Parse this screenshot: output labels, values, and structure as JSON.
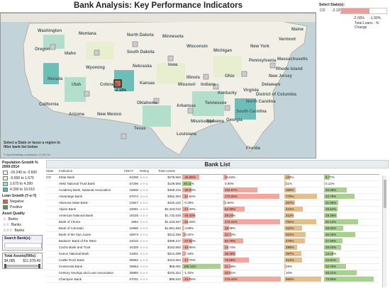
{
  "title": "Bank Analysis: Key Performance Indicators",
  "map": {
    "caption_line1": "Select a State or lasso a region to",
    "caption_line2": "filter bank list below",
    "credit": "© OpenStreetMap contributors, CC-BY-SA",
    "selected_value": "-2.12%",
    "labels": [
      {
        "name": "Washington"
      },
      {
        "name": "Montana"
      },
      {
        "name": "North Dakota"
      },
      {
        "name": "Minnesota"
      },
      {
        "name": "Oregon"
      },
      {
        "name": "Idaho"
      },
      {
        "name": "South Dakota"
      },
      {
        "name": "Wisconsin"
      },
      {
        "name": "Michigan"
      },
      {
        "name": "Wyoming"
      },
      {
        "name": "Nebraska"
      },
      {
        "name": "Iowa"
      },
      {
        "name": "Nevada"
      },
      {
        "name": "Utah"
      },
      {
        "name": "Colorado"
      },
      {
        "name": "Kansas"
      },
      {
        "name": "Missouri"
      },
      {
        "name": "California"
      },
      {
        "name": "Arizona"
      },
      {
        "name": "New Mexico"
      },
      {
        "name": "Oklahoma"
      },
      {
        "name": "Arkansas"
      },
      {
        "name": "Texas"
      },
      {
        "name": "Louisiana"
      },
      {
        "name": "Mississippi"
      },
      {
        "name": "Alabama"
      },
      {
        "name": "Georgia"
      },
      {
        "name": "Florida"
      },
      {
        "name": "Tennessee"
      },
      {
        "name": "Kentucky"
      },
      {
        "name": "Indiana"
      },
      {
        "name": "Illinois"
      },
      {
        "name": "Ohio"
      },
      {
        "name": "Pennsylvania"
      },
      {
        "name": "New York"
      },
      {
        "name": "Vermont"
      },
      {
        "name": "Maine"
      },
      {
        "name": "Massachusetts"
      },
      {
        "name": "Rhode Island"
      },
      {
        "name": "New Jersey"
      },
      {
        "name": "Delaware"
      },
      {
        "name": "Virginia"
      },
      {
        "name": "North Carolina"
      },
      {
        "name": "South Carolina"
      },
      {
        "name": "District of Columbia"
      }
    ]
  },
  "state_filter": {
    "title": "Select State(s):",
    "state": "CO",
    "value": "-2.12%",
    "tick_left": "-2.00%",
    "tick_right": "-1.00%",
    "axis_label": "Total Loans - % Change"
  },
  "legend": {
    "pop_title_1": "Population Growth %",
    "pop_title_2": "2009-2014",
    "pop_items": [
      {
        "label": "-26.240 to -0.600",
        "color": "#f3f3f3"
      },
      {
        "label": "-0.600 to 1.670",
        "color": "#e7f0ce"
      },
      {
        "label": "1.670 to 4.390",
        "color": "#a9dcc8"
      },
      {
        "label": "4.390 to 10.010",
        "color": "#55b7b2"
      }
    ],
    "loan_title": "Loan Growth (Y-o-Y)",
    "loan_items": [
      {
        "label": "Negative",
        "color": "#e0604e"
      },
      {
        "label": "Positive",
        "color": "#4e9a4e"
      }
    ],
    "asset_title": "Asset Quality",
    "asset_items": [
      {
        "label": "Banks",
        "glyph": "☆"
      },
      {
        "label": "Banks",
        "glyph": "☆☆"
      },
      {
        "label": "Banks",
        "glyph": "☆☆☆"
      }
    ],
    "search_label": "Search Bank(s):",
    "search_value": "",
    "assets_label": "Total Assets(000s):",
    "assets_min": "$4,085",
    "assets_max": "$11,978,49"
  },
  "bank_list": {
    "title": "Bank List",
    "columns": [
      "State",
      "Institution",
      "FDIC#",
      "Rating",
      "Total Assets"
    ],
    "rows": [
      {
        "state": "CO",
        "name": "5Star Bank",
        "fdic": "91005",
        "rating": "☆☆☆",
        "assets": "$179,592",
        "c1": "-46.98%",
        "c2": "10.63%",
        "c3": "133%",
        "c4": "8.77%"
      },
      {
        "state": "",
        "name": "AMG National Trust Bank",
        "fdic": "67296",
        "rating": "☆☆☆",
        "assets": "$139,650",
        "c1": "26.11%",
        "c2": "0.00%",
        "c3": "31%",
        "c4": "0.12%"
      },
      {
        "state": "",
        "name": "Academy Bank, National Association",
        "fdic": "19600",
        "rating": "☆☆☆",
        "assets": "$469,216",
        "c1": "-25.00%",
        "c2": "102.67%",
        "c3": "266%",
        "c4": "33.38%"
      },
      {
        "state": "",
        "name": "Advantage Bank",
        "fdic": "57072",
        "rating": "☆☆☆",
        "assets": "$362,304",
        "c1": "-14.84%",
        "c2": "170.26%",
        "c3": "770%",
        "c4": "44.79%"
      },
      {
        "state": "",
        "name": "Alamosa State Bank",
        "fdic": "13947",
        "rating": "☆☆☆",
        "assets": "$160,162",
        "c1": "-0.39%",
        "c2": "4.50%",
        "c3": "257%",
        "c4": "21.05%"
      },
      {
        "state": "",
        "name": "Alpine Bank",
        "fdic": "23091",
        "rating": "☆☆☆",
        "assets": "$2,423,012",
        "c1": "-17.40%",
        "c2": "64.39%",
        "c3": "441%",
        "c4": "19.64%"
      },
      {
        "state": "",
        "name": "American National Bank",
        "fdic": "19220",
        "rating": "☆☆☆",
        "assets": "$1,732,629",
        "c1": "-34.42%",
        "c2": "29.24%",
        "c3": "212%",
        "c4": "19.36%"
      },
      {
        "state": "",
        "name": "Bank of Choice",
        "fdic": "2994",
        "rating": "☆☆☆",
        "assets": "$1,233,947",
        "c1": "-16.29%",
        "c2": "172.22%",
        "c3": "752%",
        "c4": "50.12%"
      },
      {
        "state": "",
        "name": "Bank of Colorado",
        "fdic": "16980",
        "rating": "☆☆☆",
        "assets": "$1,951,940",
        "c1": "-4.89%",
        "c2": "16.99%",
        "c3": "410%",
        "c4": "28.02%"
      },
      {
        "state": "",
        "name": "Bank of the San Juans",
        "fdic": "34873",
        "rating": "☆☆☆",
        "assets": "$212,256",
        "c1": "-8.42%",
        "c2": "22.72%",
        "c3": "501%",
        "c4": "46.03%"
      },
      {
        "state": "",
        "name": "Bankers' Bank of the West",
        "fdic": "23210",
        "rating": "☆☆☆",
        "assets": "$398,217",
        "c1": "-27.62%",
        "c2": "60.79%",
        "c3": "479%",
        "c4": "27.60%"
      },
      {
        "state": "",
        "name": "Cache Bank and Trust",
        "fdic": "34328",
        "rating": "☆☆☆",
        "assets": "$152,692",
        "c1": "-16.96%",
        "c2": "14.74%",
        "c3": "298%",
        "c4": "25.04%"
      },
      {
        "state": "",
        "name": "Canon National Bank",
        "fdic": "21801",
        "rating": "☆☆☆",
        "assets": "$241,099",
        "c1": "-7.18%",
        "c2": "36.46%",
        "c3": "397%",
        "c4": "14.10%"
      },
      {
        "state": "",
        "name": "Castle Rock Bank",
        "fdic": "90582",
        "rating": "☆☆☆",
        "assets": "$104,684",
        "c1": "-17.76%",
        "c2": "76.89%",
        "c3": "414%",
        "c4": "22.81%"
      },
      {
        "state": "",
        "name": "Centennial Bank",
        "fdic": "26863",
        "rating": "☆☆☆",
        "assets": "$58,091",
        "c1": "105.11%",
        "c2": "21.28%",
        "c3": "29%",
        "c4": "32.75%"
      },
      {
        "state": "",
        "name": "Century Savings and Loan Association",
        "fdic": "28880",
        "rating": "☆☆☆",
        "assets": "$104,322",
        "c1": "-1.32%",
        "c2": "20.81%",
        "c3": "10%",
        "c4": "48.11%"
      },
      {
        "state": "",
        "name": "Champion Bank",
        "fdic": "57031",
        "rating": "☆☆☆",
        "assets": "$86,532",
        "c1": "-21.06%",
        "c2": "174.44%",
        "c3": "860%",
        "c4": "73.83%"
      }
    ]
  },
  "colors": {
    "negative": "#e0604e",
    "positive": "#4e9a4e",
    "pink": "#f0a89c",
    "tan": "#e3bf8e",
    "green": "#a9d08e"
  }
}
